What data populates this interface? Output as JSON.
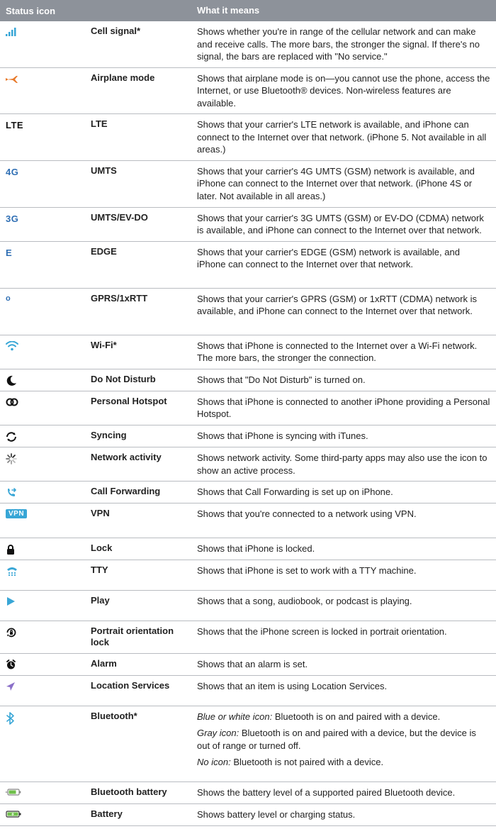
{
  "header": {
    "icon_col": "Status icon",
    "desc_col": "What it means"
  },
  "colors": {
    "header_bg": "#8d929a",
    "rule": "#b9bcc1",
    "blue": "#2f6fb4",
    "cyan": "#38a6d6",
    "orange": "#e87a2b",
    "purple": "#8a6fc8",
    "green": "#6fbf4a",
    "black": "#111111"
  },
  "rows": [
    {
      "icon": "cell-signal",
      "icon_color": "#38a6d6",
      "name": "Cell signal*",
      "desc": "Shows whether you're in range of the cellular network and can make and receive calls. The more bars, the stronger the signal. If there's no signal, the bars are replaced with \"No service.\""
    },
    {
      "icon": "airplane",
      "icon_color": "#e87a2b",
      "name": "Airplane mode",
      "desc": "Shows that airplane mode is on—you cannot use the phone, access the Internet, or use Bluetooth® devices. Non-wireless features are available."
    },
    {
      "icon": "text",
      "icon_text": "LTE",
      "icon_color": "#111111",
      "name": "LTE",
      "desc": "Shows that your carrier's LTE network is available, and iPhone can connect to the Internet over that network. (iPhone 5. Not available in all areas.)"
    },
    {
      "icon": "text",
      "icon_text": "4G",
      "icon_color": "#2f6fb4",
      "name": "UMTS",
      "desc": "Shows that your carrier's 4G UMTS (GSM) network is available, and iPhone can connect to the Internet over that network. (iPhone 4S or later. Not available in all areas.)"
    },
    {
      "icon": "text",
      "icon_text": "3G",
      "icon_color": "#2f6fb4",
      "name": "UMTS/EV-DO",
      "desc": "Shows that your carrier's 3G UMTS (GSM) or EV-DO (CDMA) network is available, and iPhone can connect to the Internet over that network."
    },
    {
      "icon": "text",
      "icon_text": "E",
      "icon_color": "#2f6fb4",
      "name": "EDGE",
      "desc": "Shows that your carrier's EDGE (GSM) network is available, and iPhone can connect to the Internet over that network.",
      "extra_space": true
    },
    {
      "icon": "text",
      "icon_text": "o",
      "icon_color": "#2f6fb4",
      "icon_small": true,
      "name": "GPRS/1xRTT",
      "desc": "Shows that your carrier's GPRS (GSM) or 1xRTT (CDMA) network is available, and iPhone can connect to the Internet over that network.",
      "extra_space": true
    },
    {
      "icon": "wifi",
      "icon_color": "#38a6d6",
      "name": "Wi-Fi*",
      "desc": "Shows that iPhone is connected to the Internet over a Wi-Fi network. The more bars, the stronger the connection."
    },
    {
      "icon": "moon",
      "icon_color": "#111111",
      "name": "Do Not Disturb",
      "desc": "Shows that \"Do Not Disturb\" is turned on."
    },
    {
      "icon": "hotspot",
      "icon_color": "#111111",
      "name": "Personal Hotspot",
      "desc": "Shows that iPhone is connected to another iPhone providing a Personal Hotspot."
    },
    {
      "icon": "sync",
      "icon_color": "#111111",
      "name": "Syncing",
      "desc": "Shows that iPhone is syncing with iTunes."
    },
    {
      "icon": "activity",
      "icon_color": "#111111",
      "name": "Network activity",
      "desc": "Shows network activity. Some third-party apps may also use the icon to show an active process."
    },
    {
      "icon": "call-fwd",
      "icon_color": "#38a6d6",
      "name": "Call Forwarding",
      "desc": "Shows that Call Forwarding is set up on iPhone."
    },
    {
      "icon": "vpn",
      "icon_color": "#38a6d6",
      "icon_text": "VPN",
      "name": "VPN",
      "desc": "Shows that you're connected to a network using VPN.",
      "extra_space": true
    },
    {
      "icon": "lock",
      "icon_color": "#111111",
      "name": "Lock",
      "desc": "Shows that iPhone is locked."
    },
    {
      "icon": "tty",
      "icon_color": "#38a6d6",
      "name": "TTY",
      "desc": "Shows that iPhone is set to work with a TTY machine.",
      "extra_space_after": true
    },
    {
      "icon": "play",
      "icon_color": "#38a6d6",
      "name": "Play",
      "desc": "Shows that a song, audiobook, or podcast is playing.",
      "extra_space_after": true
    },
    {
      "icon": "orientation-lock",
      "icon_color": "#111111",
      "name": "Portrait orientation lock",
      "desc": "Shows that the iPhone screen is locked in portrait orientation."
    },
    {
      "icon": "alarm",
      "icon_color": "#111111",
      "name": "Alarm",
      "desc": "Shows that an alarm is set."
    },
    {
      "icon": "location",
      "icon_color": "#8a6fc8",
      "name": "Location Services",
      "desc": "Shows that an item is using Location Services.",
      "extra_space_after": true
    },
    {
      "icon": "bluetooth",
      "icon_color": "#38a6d6",
      "name": "Bluetooth*",
      "multi_desc": [
        {
          "label": "Blue or white icon:",
          "text": " Bluetooth is on and paired with a device."
        },
        {
          "label": "Gray icon:",
          "text": " Bluetooth is on and paired with a device, but the device is out of range or turned off."
        },
        {
          "label": "No icon:",
          "text": " Bluetooth is not paired with a device."
        }
      ],
      "extra_space_after": true
    },
    {
      "icon": "bt-battery",
      "icon_color": "#6fbf4a",
      "name": "Bluetooth battery",
      "desc": "Shows the battery level of a supported paired Bluetooth device."
    },
    {
      "icon": "battery",
      "icon_color": "#6fbf4a",
      "name": "Battery",
      "desc": "Shows battery level or charging status."
    }
  ]
}
